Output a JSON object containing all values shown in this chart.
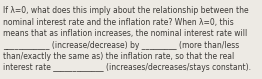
{
  "text_lines": [
    "If λ=0, what does this imply about the relationship between the",
    "nominal interest rate and the inflation rate? When λ=0, this",
    "means that as inflation increases, the nominal interest rate will",
    "____________ (increase/decrease) by _________ (more than/less",
    "than/exactly the same as) the inflation rate, so that the real",
    "interest rate _____________ (increases/decreases/stays constant)."
  ],
  "font_size": 5.5,
  "font_color": "#3c3a37",
  "background_color": "#edeae4",
  "font_family": "DejaVu Sans"
}
